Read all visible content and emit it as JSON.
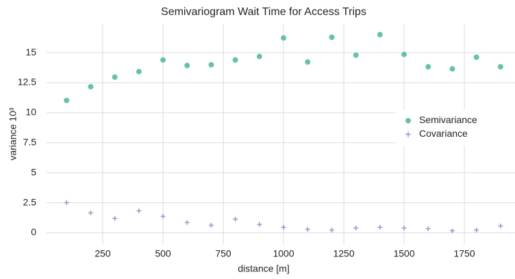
{
  "chart_data": {
    "type": "scatter",
    "title": "Semivariogram Wait Time for Access Trips",
    "xlabel": "distance [m]",
    "ylabel": "variance 10³",
    "x": [
      100,
      200,
      300,
      400,
      500,
      600,
      700,
      800,
      900,
      1000,
      1100,
      1200,
      1300,
      1400,
      1500,
      1600,
      1700,
      1800,
      1900
    ],
    "series": [
      {
        "name": "Semivariance",
        "color": "#66c2a5",
        "marker": "o",
        "values": [
          11.03,
          12.17,
          12.97,
          13.43,
          14.4,
          13.94,
          14.0,
          14.4,
          14.69,
          16.23,
          14.23,
          16.29,
          14.8,
          16.51,
          14.86,
          13.83,
          13.66,
          14.63,
          13.83
        ]
      },
      {
        "name": "Covariance",
        "color": "#8da0cb",
        "marker": "+",
        "values": [
          2.51,
          1.66,
          1.2,
          1.83,
          1.37,
          0.86,
          0.63,
          1.14,
          0.69,
          0.46,
          0.29,
          0.23,
          0.4,
          0.46,
          0.4,
          0.34,
          0.17,
          0.23,
          0.57
        ]
      }
    ],
    "xlim": [
      17,
      1960
    ],
    "xticks": [
      250,
      500,
      750,
      1000,
      1250,
      1500,
      1750
    ],
    "ylim": [
      -1,
      17.4
    ],
    "yticks": [
      0,
      2.5,
      5,
      7.5,
      10,
      12.5,
      15
    ],
    "grid": true,
    "legend": "center right"
  }
}
